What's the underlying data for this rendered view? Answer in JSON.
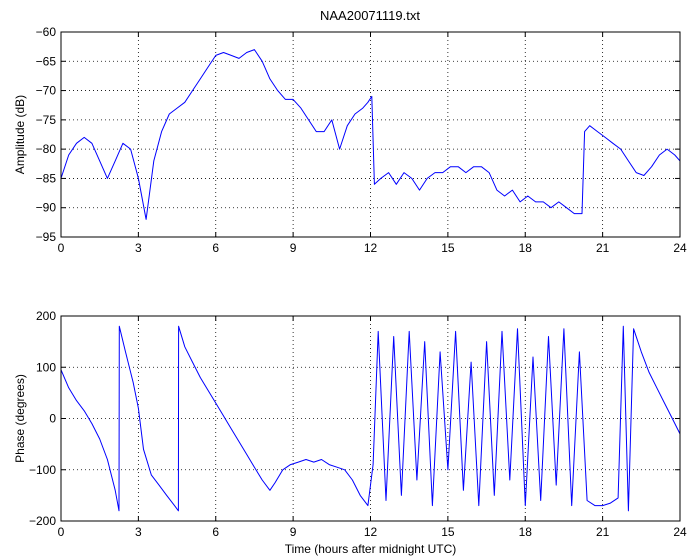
{
  "figure_title": "NAA20071119.txt",
  "chart_data": [
    {
      "type": "line",
      "title": "NAA20071119.txt",
      "xlabel": "",
      "ylabel": "Amplitude (dB)",
      "xlim": [
        0,
        24
      ],
      "ylim": [
        -95,
        -60
      ],
      "xticks": [
        0,
        3,
        6,
        9,
        12,
        15,
        18,
        21,
        24
      ],
      "xtick_labels": [
        "0",
        "3",
        "6",
        "9",
        "12",
        "15",
        "18",
        "21",
        "24"
      ],
      "yticks": [
        -95,
        -90,
        -85,
        -80,
        -75,
        -70,
        -65,
        -60
      ],
      "ytick_labels": [
        "−95",
        "−90",
        "−85",
        "−80",
        "−75",
        "−70",
        "−65",
        "−60"
      ],
      "grid": true,
      "line_color": "#0000ff",
      "series": [
        {
          "name": "",
          "x": [
            0,
            0.3,
            0.6,
            0.9,
            1.2,
            1.5,
            1.8,
            2.1,
            2.4,
            2.7,
            3.0,
            3.3,
            3.6,
            3.9,
            4.2,
            4.5,
            4.8,
            5.1,
            5.4,
            5.7,
            6.0,
            6.3,
            6.6,
            6.9,
            7.2,
            7.5,
            7.8,
            8.1,
            8.4,
            8.7,
            9.0,
            9.3,
            9.6,
            9.9,
            10.2,
            10.5,
            10.8,
            11.1,
            11.4,
            11.7,
            11.9,
            12.05,
            12.15,
            12.4,
            12.7,
            13.0,
            13.3,
            13.6,
            13.9,
            14.2,
            14.5,
            14.8,
            15.1,
            15.4,
            15.7,
            16.0,
            16.3,
            16.6,
            16.9,
            17.2,
            17.5,
            17.8,
            18.1,
            18.4,
            18.7,
            19.0,
            19.3,
            19.6,
            19.9,
            20.2,
            20.3,
            20.5,
            20.8,
            21.1,
            21.4,
            21.7,
            22.0,
            22.3,
            22.6,
            22.9,
            23.2,
            23.5,
            23.8,
            24.0
          ],
          "y": [
            -85,
            -81,
            -79,
            -78,
            -79,
            -82,
            -85,
            -82,
            -79,
            -80,
            -85,
            -92,
            -82,
            -77,
            -74,
            -73,
            -72,
            -70,
            -68,
            -66,
            -64,
            -63.5,
            -64,
            -64.5,
            -63.5,
            -63,
            -65,
            -68,
            -70,
            -71.5,
            -71.5,
            -73,
            -75,
            -77,
            -77,
            -75,
            -80,
            -76,
            -74,
            -73,
            -72,
            -71,
            -86,
            -85,
            -84,
            -86,
            -84,
            -85,
            -87,
            -85,
            -84,
            -84,
            -83,
            -83,
            -84,
            -83,
            -83,
            -84,
            -87,
            -88,
            -87,
            -89,
            -88,
            -89,
            -89,
            -90,
            -89,
            -90,
            -91,
            -91,
            -77,
            -76,
            -77,
            -78,
            -79,
            -80,
            -82,
            -84,
            -84.5,
            -83,
            -81,
            -80,
            -81,
            -82
          ]
        }
      ]
    },
    {
      "type": "line",
      "title": "",
      "xlabel": "Time (hours after midnight UTC)",
      "ylabel": "Phase (degrees)",
      "xlim": [
        0,
        24
      ],
      "ylim": [
        -200,
        200
      ],
      "xticks": [
        0,
        3,
        6,
        9,
        12,
        15,
        18,
        21,
        24
      ],
      "xtick_labels": [
        "0",
        "3",
        "6",
        "9",
        "12",
        "15",
        "18",
        "21",
        "24"
      ],
      "yticks": [
        -200,
        -100,
        0,
        100,
        200
      ],
      "ytick_labels": [
        "−200",
        "−100",
        "0",
        "100",
        "200"
      ],
      "grid": true,
      "line_color": "#0000ff",
      "series": [
        {
          "name": "",
          "x": [
            0,
            0.3,
            0.6,
            0.9,
            1.2,
            1.5,
            1.8,
            2.1,
            2.25,
            2.26,
            2.5,
            2.8,
            3.0,
            3.2,
            3.5,
            3.8,
            4.1,
            4.4,
            4.55,
            4.56,
            4.8,
            5.1,
            5.4,
            5.7,
            6.0,
            6.3,
            6.6,
            6.9,
            7.2,
            7.5,
            7.8,
            8.1,
            8.3,
            8.6,
            8.9,
            9.2,
            9.5,
            9.8,
            10.1,
            10.4,
            10.7,
            11.0,
            11.3,
            11.6,
            11.9,
            12.1,
            12.3,
            12.6,
            12.9,
            13.2,
            13.5,
            13.8,
            14.1,
            14.4,
            14.7,
            15.0,
            15.3,
            15.6,
            15.9,
            16.2,
            16.5,
            16.8,
            17.1,
            17.4,
            17.7,
            18.0,
            18.3,
            18.6,
            18.9,
            19.2,
            19.5,
            19.8,
            20.1,
            20.4,
            20.7,
            21.0,
            21.3,
            21.6,
            21.8,
            22.0,
            22.2,
            22.5,
            22.8,
            23.1,
            23.4,
            23.7,
            24.0
          ],
          "y": [
            95,
            60,
            35,
            15,
            -10,
            -40,
            -80,
            -140,
            -180,
            180,
            130,
            70,
            20,
            -60,
            -110,
            -130,
            -150,
            -170,
            -180,
            180,
            140,
            110,
            80,
            55,
            30,
            5,
            -20,
            -45,
            -70,
            -95,
            -120,
            -140,
            -125,
            -100,
            -90,
            -85,
            -80,
            -85,
            -80,
            -90,
            -95,
            -100,
            -120,
            -150,
            -170,
            -90,
            170,
            -160,
            160,
            -150,
            170,
            -120,
            150,
            -170,
            130,
            -100,
            170,
            -140,
            110,
            -170,
            150,
            -150,
            170,
            -120,
            175,
            -170,
            120,
            -160,
            160,
            -130,
            175,
            -170,
            130,
            -160,
            -170,
            -170,
            -165,
            -155,
            180,
            -180,
            175,
            130,
            90,
            60,
            30,
            0,
            -30
          ]
        }
      ]
    }
  ]
}
